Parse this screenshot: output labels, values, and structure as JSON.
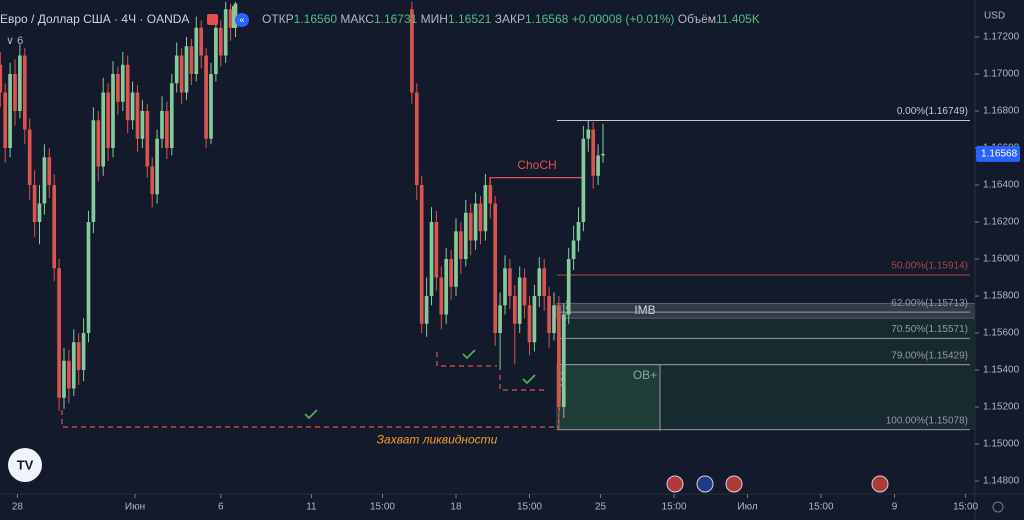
{
  "header": {
    "symbol": "Евро / Доллар США · 4Ч · OANDA",
    "indicators": "6",
    "ohlc": [
      {
        "label": "ОТКР",
        "value": "1.16560"
      },
      {
        "label": "МАКС",
        "value": "1.16731"
      },
      {
        "label": "МИН",
        "value": "1.16521"
      },
      {
        "label": "ЗАКР",
        "value": "1.16568"
      }
    ],
    "change": "+0.00008 (+0.01%)",
    "volume_label": "Объём",
    "volume": "11.405K",
    "currency": "USD"
  },
  "chart_data": {
    "type": "candlestick",
    "up_color": "#86c99a",
    "down_color": "#d9534f",
    "x": [
      0,
      1,
      2,
      3,
      4,
      5,
      6,
      7,
      8,
      9,
      10,
      11,
      12,
      13,
      14,
      15,
      16,
      17,
      18,
      19,
      20,
      21,
      22,
      23,
      24,
      25,
      26,
      27,
      28,
      29,
      30,
      31,
      32,
      33,
      34,
      35,
      36,
      37,
      38,
      39,
      40,
      41,
      42,
      43,
      44,
      45,
      46,
      47,
      48,
      84,
      85,
      86,
      87,
      88,
      89,
      90,
      91,
      92,
      93,
      94,
      95,
      96,
      97,
      98,
      99,
      100,
      101,
      102,
      103,
      104,
      105,
      106,
      107,
      108,
      109,
      110,
      111,
      112,
      113,
      114,
      115,
      116,
      117,
      118,
      119,
      120,
      121,
      122,
      123
    ],
    "open": [
      1.1705,
      1.169,
      1.166,
      1.17,
      1.168,
      1.171,
      1.167,
      1.164,
      1.162,
      1.163,
      1.1655,
      1.164,
      1.1595,
      1.1525,
      1.1545,
      1.153,
      1.1555,
      1.154,
      1.156,
      1.162,
      1.1675,
      1.165,
      1.169,
      1.166,
      1.17,
      1.1685,
      1.1705,
      1.1675,
      1.169,
      1.1665,
      1.168,
      1.165,
      1.1635,
      1.1665,
      1.168,
      1.166,
      1.1695,
      1.171,
      1.169,
      1.1715,
      1.17,
      1.1725,
      1.171,
      1.1665,
      1.17,
      1.1725,
      1.171,
      1.1735,
      1.1725,
      1.1735,
      1.169,
      1.164,
      1.1565,
      1.158,
      1.162,
      1.159,
      1.157,
      1.16,
      1.1585,
      1.1615,
      1.16,
      1.1625,
      1.161,
      1.163,
      1.1615,
      1.164,
      1.163,
      1.156,
      1.1575,
      1.1595,
      1.158,
      1.1565,
      1.159,
      1.1575,
      1.1555,
      1.158,
      1.1595,
      1.158,
      1.156,
      1.1575,
      1.152,
      1.157,
      1.16,
      1.161,
      1.162,
      1.1665,
      1.167,
      1.1645,
      1.1656
    ],
    "high": [
      1.1712,
      1.1695,
      1.1706,
      1.1708,
      1.1716,
      1.1714,
      1.1676,
      1.1648,
      1.164,
      1.1662,
      1.166,
      1.1646,
      1.16,
      1.1552,
      1.1551,
      1.1562,
      1.156,
      1.1568,
      1.1626,
      1.1682,
      1.168,
      1.1698,
      1.1695,
      1.1707,
      1.1704,
      1.1712,
      1.171,
      1.1696,
      1.1694,
      1.1686,
      1.1684,
      1.1655,
      1.167,
      1.1688,
      1.1685,
      1.17,
      1.1717,
      1.1714,
      1.172,
      1.1719,
      1.1731,
      1.1729,
      1.1714,
      1.1706,
      1.173,
      1.1729,
      1.1739,
      1.1738,
      1.1739,
      1.1739,
      1.1695,
      1.1645,
      1.159,
      1.1628,
      1.1626,
      1.1596,
      1.1606,
      1.1605,
      1.1622,
      1.162,
      1.1632,
      1.163,
      1.1636,
      1.1634,
      1.1646,
      1.1644,
      1.1634,
      1.1582,
      1.1602,
      1.16,
      1.1586,
      1.1596,
      1.1595,
      1.158,
      1.1586,
      1.1601,
      1.16,
      1.1585,
      1.1582,
      1.158,
      1.1576,
      1.1606,
      1.1618,
      1.1628,
      1.1672,
      1.16749,
      1.1674,
      1.1662,
      1.16731
    ],
    "low": [
      1.1682,
      1.1652,
      1.1655,
      1.1672,
      1.1676,
      1.1662,
      1.1632,
      1.1612,
      1.1608,
      1.1624,
      1.1633,
      1.1588,
      1.1518,
      1.1519,
      1.1522,
      1.1526,
      1.1532,
      1.1534,
      1.1555,
      1.1614,
      1.1642,
      1.1645,
      1.1653,
      1.1655,
      1.1678,
      1.168,
      1.1668,
      1.167,
      1.1658,
      1.166,
      1.1644,
      1.1628,
      1.163,
      1.166,
      1.1654,
      1.1656,
      1.169,
      1.1684,
      1.1686,
      1.1694,
      1.1696,
      1.1703,
      1.166,
      1.1662,
      1.1696,
      1.1704,
      1.1706,
      1.1718,
      1.172,
      1.1684,
      1.1632,
      1.156,
      1.1558,
      1.1575,
      1.1583,
      1.1562,
      1.1565,
      1.1578,
      1.158,
      1.1592,
      1.1596,
      1.1602,
      1.1605,
      1.1608,
      1.161,
      1.1622,
      1.1553,
      1.154,
      1.157,
      1.1573,
      1.1543,
      1.156,
      1.1568,
      1.1548,
      1.155,
      1.1574,
      1.1572,
      1.1552,
      1.1556,
      1.1508,
      1.1514,
      1.1565,
      1.1594,
      1.1604,
      1.1615,
      1.1658,
      1.1638,
      1.164,
      1.16521
    ],
    "close": [
      1.169,
      1.166,
      1.17,
      1.168,
      1.171,
      1.167,
      1.164,
      1.162,
      1.163,
      1.1655,
      1.164,
      1.1595,
      1.1525,
      1.1545,
      1.153,
      1.1555,
      1.154,
      1.156,
      1.162,
      1.1675,
      1.165,
      1.169,
      1.166,
      1.17,
      1.1685,
      1.1705,
      1.1675,
      1.169,
      1.1665,
      1.168,
      1.165,
      1.1635,
      1.1665,
      1.168,
      1.166,
      1.1695,
      1.171,
      1.169,
      1.1715,
      1.17,
      1.1725,
      1.171,
      1.1665,
      1.17,
      1.1725,
      1.171,
      1.1735,
      1.1725,
      1.1738,
      1.169,
      1.164,
      1.1565,
      1.158,
      1.162,
      1.159,
      1.157,
      1.16,
      1.1585,
      1.1615,
      1.16,
      1.1625,
      1.161,
      1.163,
      1.1615,
      1.164,
      1.163,
      1.156,
      1.1575,
      1.1595,
      1.158,
      1.1565,
      1.159,
      1.1575,
      1.1555,
      1.158,
      1.1595,
      1.158,
      1.156,
      1.1575,
      1.152,
      1.157,
      1.16,
      1.161,
      1.162,
      1.1665,
      1.167,
      1.1645,
      1.1656,
      1.16568
    ],
    "xlim": [
      -0.06,
      198.92
    ],
    "ylim": [
      1.1473,
      1.174
    ],
    "xticks": [
      {
        "value": 3.5,
        "label": "28"
      },
      {
        "value": 27.5,
        "label": "Июн"
      },
      {
        "value": 45,
        "label": "6"
      },
      {
        "value": 63.5,
        "label": "11"
      },
      {
        "value": 78,
        "label": "15:00"
      },
      {
        "value": 93,
        "label": "18"
      },
      {
        "value": 108,
        "label": "15:00"
      },
      {
        "value": 122.5,
        "label": "25"
      },
      {
        "value": 137.5,
        "label": "15:00"
      },
      {
        "value": 152.5,
        "label": "Июл"
      },
      {
        "value": 167.5,
        "label": "15:00"
      },
      {
        "value": 182.5,
        "label": "9"
      },
      {
        "value": 197,
        "label": "15:00"
      }
    ],
    "yticks": [
      {
        "value": 1.148,
        "label": "1.14800"
      },
      {
        "value": 1.15,
        "label": "1.15000"
      },
      {
        "value": 1.152,
        "label": "1.15200"
      },
      {
        "value": 1.154,
        "label": "1.15400"
      },
      {
        "value": 1.156,
        "label": "1.15600"
      },
      {
        "value": 1.158,
        "label": "1.15800"
      },
      {
        "value": 1.16,
        "label": "1.16000"
      },
      {
        "value": 1.162,
        "label": "1.16200"
      },
      {
        "value": 1.164,
        "label": "1.16400"
      },
      {
        "value": 1.166,
        "label": "1.16600"
      },
      {
        "value": 1.168,
        "label": "1.16800"
      },
      {
        "value": 1.17,
        "label": "1.17000"
      },
      {
        "value": 1.172,
        "label": "1.17200"
      }
    ],
    "last_price": 1.16568,
    "last_price_color": "#2962ff",
    "fib_levels": [
      {
        "label": "0.00%(1.16749)",
        "value": 1.16749,
        "color": "#c7c9d0"
      },
      {
        "label": "50.00%(1.15914)",
        "value": 1.15914,
        "color": "#b04545"
      },
      {
        "label": "62.00%(1.15713)",
        "value": 1.15713,
        "color": "#9598a1"
      },
      {
        "label": "70.50%(1.15571)",
        "value": 1.15571,
        "color": "#9598a1"
      },
      {
        "label": "79.00%(1.15429)",
        "value": 1.15429,
        "color": "#9598a1"
      },
      {
        "label": "100.00%(1.15078)",
        "value": 1.15078,
        "color": "#9598a1"
      }
    ],
    "zones": [
      {
        "label": "IMB",
        "high": 1.1576,
        "low": 1.1568,
        "color": "#5d6270"
      },
      {
        "label": "OB+",
        "high": 1.15429,
        "low": 1.15078,
        "color": "#2f5a46"
      }
    ],
    "annotations": [
      {
        "text": "ChoCH",
        "value": 1.1644,
        "color": "#e0514f"
      },
      {
        "text": "Захват ликвидности",
        "value": 1.1509,
        "color": "#f29a2e"
      }
    ]
  }
}
